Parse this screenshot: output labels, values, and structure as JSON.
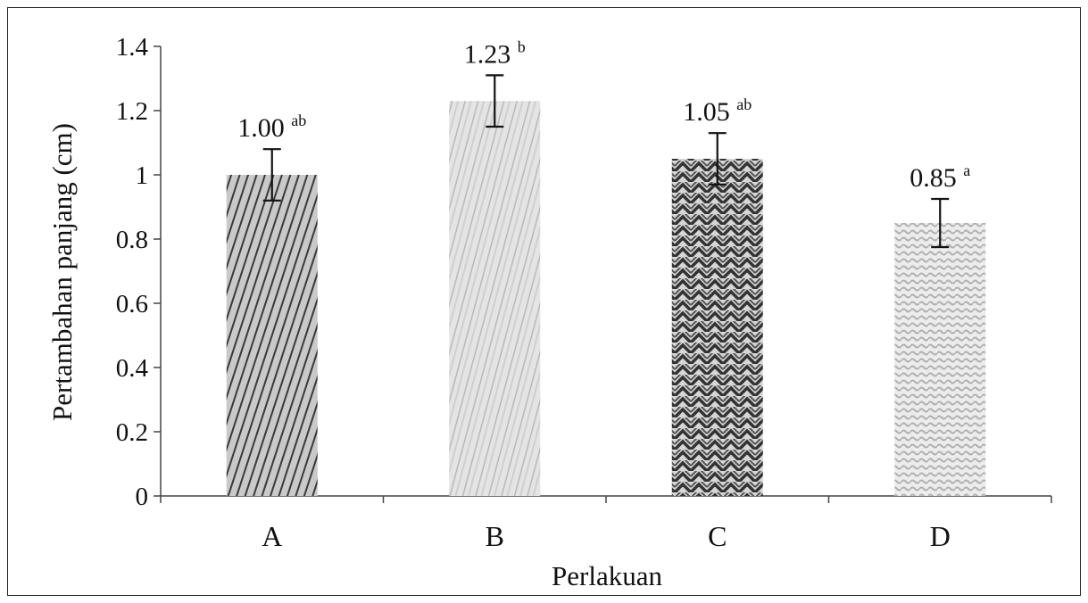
{
  "chart_data": {
    "type": "bar",
    "title": "",
    "xlabel": "Perlakuan",
    "ylabel": "Pertambahan panjang (cm)",
    "categories": [
      "A",
      "B",
      "C",
      "D"
    ],
    "values": [
      1.0,
      1.23,
      1.05,
      0.85
    ],
    "errors": [
      0.08,
      0.08,
      0.08,
      0.075
    ],
    "value_labels": [
      "1.00",
      "1.23",
      "1.05",
      "0.85"
    ],
    "significance_letters": [
      "ab",
      "b",
      "ab",
      "a"
    ],
    "ylim": [
      0,
      1.4
    ],
    "yticks": [
      0,
      0.2,
      0.4,
      0.6,
      0.8,
      1,
      1.2,
      1.4
    ],
    "ytick_labels": [
      "0",
      "0.2",
      "0.4",
      "0.6",
      "0.8",
      "1",
      "1.2",
      "1.4"
    ],
    "grid": false,
    "legend": "none",
    "bar_patterns": [
      "diagonal-dark",
      "diagonal-light",
      "zigzag-dark",
      "wave-light"
    ]
  }
}
